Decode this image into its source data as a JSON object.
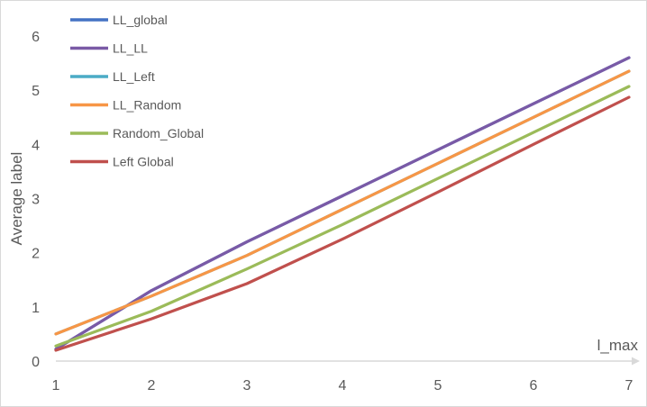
{
  "chart_data": {
    "type": "line",
    "title": "",
    "xlabel": "l_max",
    "ylabel": "Average label",
    "x": [
      1,
      2,
      3,
      4,
      5,
      6,
      7
    ],
    "xlim": [
      1,
      7
    ],
    "ylim": [
      0,
      6
    ],
    "yticks": [
      0,
      1,
      2,
      3,
      4,
      5,
      6
    ],
    "xticks": [
      1,
      2,
      3,
      4,
      5,
      6,
      7
    ],
    "grid": false,
    "legend_position": "top-left",
    "series": [
      {
        "name": "LL_global",
        "color": "#4472c4",
        "values": [
          0.22,
          1.3,
          2.2,
          3.05,
          3.9,
          4.75,
          5.6
        ]
      },
      {
        "name": "LL_LL",
        "color": "#7a5aa6",
        "values": [
          0.22,
          1.3,
          2.2,
          3.05,
          3.9,
          4.75,
          5.6
        ]
      },
      {
        "name": "LL_Left",
        "color": "#4bacc6",
        "values": [
          0.5,
          1.2,
          1.95,
          2.8,
          3.65,
          4.5,
          5.35
        ]
      },
      {
        "name": "LL_Random",
        "color": "#f79646",
        "values": [
          0.5,
          1.2,
          1.95,
          2.8,
          3.65,
          4.5,
          5.35
        ]
      },
      {
        "name": "Random_Global",
        "color": "#9bbb59",
        "values": [
          0.28,
          0.92,
          1.7,
          2.52,
          3.37,
          4.22,
          5.07
        ]
      },
      {
        "name": "Left Global",
        "color": "#c0504d",
        "values": [
          0.2,
          0.78,
          1.43,
          2.25,
          3.12,
          4.0,
          4.87
        ]
      }
    ]
  }
}
